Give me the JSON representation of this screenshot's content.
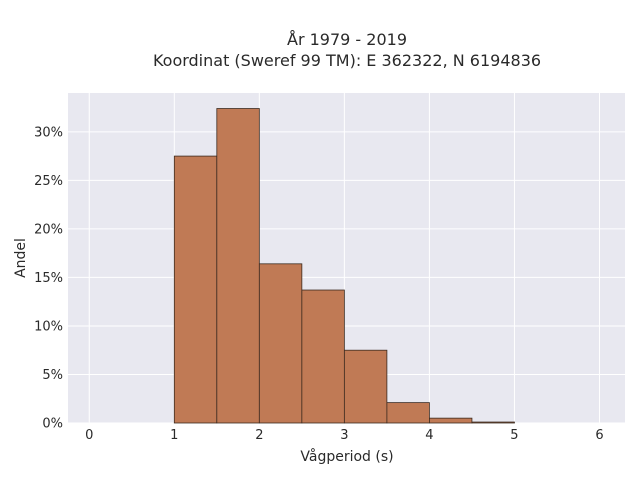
{
  "chart_data": {
    "type": "bar",
    "title_line1": "År 1979 - 2019",
    "title_line2": "Koordinat (Sweref 99 TM): E 362322, N 6194836",
    "xlabel": "Vågperiod (s)",
    "ylabel": "Andel",
    "xlim": [
      -0.25,
      6.3
    ],
    "ylim": [
      0,
      0.34
    ],
    "x_ticks": [
      0,
      1,
      2,
      3,
      4,
      5,
      6
    ],
    "y_ticks": [
      0,
      0.05,
      0.1,
      0.15,
      0.2,
      0.25,
      0.3
    ],
    "y_tick_labels": [
      "0%",
      "5%",
      "10%",
      "15%",
      "20%",
      "25%",
      "30%"
    ],
    "bins": [
      {
        "x0": 1.0,
        "x1": 1.5,
        "value": 0.275
      },
      {
        "x0": 1.5,
        "x1": 2.0,
        "value": 0.324
      },
      {
        "x0": 2.0,
        "x1": 2.5,
        "value": 0.164
      },
      {
        "x0": 2.5,
        "x1": 3.0,
        "value": 0.137
      },
      {
        "x0": 3.0,
        "x1": 3.5,
        "value": 0.075
      },
      {
        "x0": 3.5,
        "x1": 4.0,
        "value": 0.021
      },
      {
        "x0": 4.0,
        "x1": 4.5,
        "value": 0.005
      },
      {
        "x0": 4.5,
        "x1": 5.0,
        "value": 0.001
      }
    ],
    "grid": true,
    "colors": {
      "bar_fill": "#c07a55",
      "bar_stroke": "#3b2a1f",
      "plot_bg": "#e8e8f0",
      "grid": "#ffffff"
    }
  }
}
